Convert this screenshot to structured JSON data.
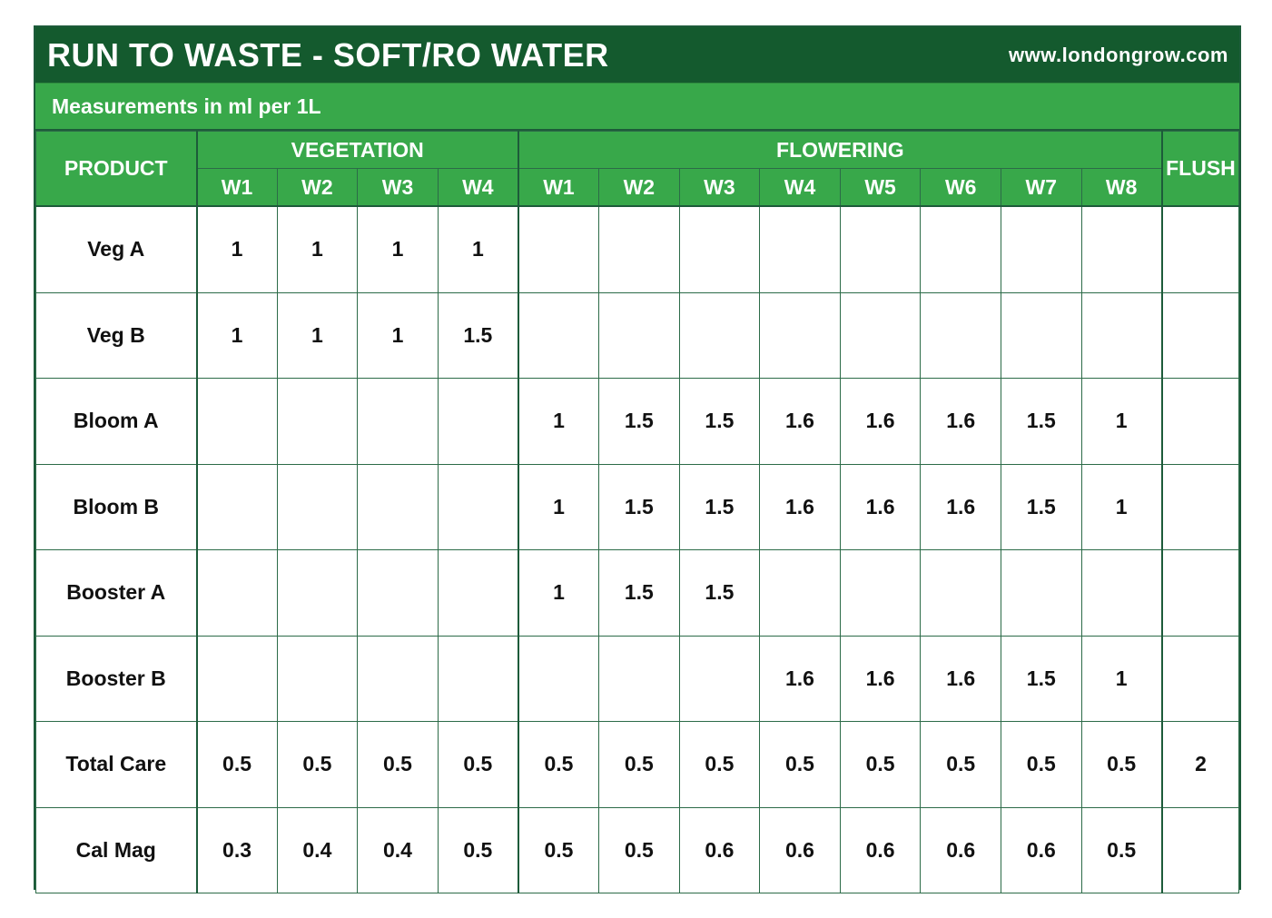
{
  "header": {
    "title": "RUN TO WASTE - SOFT/RO WATER",
    "website": "www.londongrow.com"
  },
  "subtitle": "Measurements in ml per 1L",
  "colors": {
    "title_bar": "#145a2e",
    "header_green": "#38a84a",
    "grid_line": "#1d5b3a"
  },
  "table": {
    "product_header": "PRODUCT",
    "groups": [
      {
        "label": "VEGETATION",
        "weeks": [
          "W1",
          "W2",
          "W3",
          "W4"
        ]
      },
      {
        "label": "FLOWERING",
        "weeks": [
          "W1",
          "W2",
          "W3",
          "W4",
          "W5",
          "W6",
          "W7",
          "W8"
        ]
      }
    ],
    "flush_header": "FLUSH",
    "rows": [
      {
        "product": "Veg A",
        "values": [
          "1",
          "1",
          "1",
          "1",
          "",
          "",
          "",
          "",
          "",
          "",
          "",
          "",
          ""
        ]
      },
      {
        "product": "Veg B",
        "values": [
          "1",
          "1",
          "1",
          "1.5",
          "",
          "",
          "",
          "",
          "",
          "",
          "",
          "",
          ""
        ]
      },
      {
        "product": "Bloom A",
        "values": [
          "",
          "",
          "",
          "",
          "1",
          "1.5",
          "1.5",
          "1.6",
          "1.6",
          "1.6",
          "1.5",
          "1",
          ""
        ]
      },
      {
        "product": "Bloom B",
        "values": [
          "",
          "",
          "",
          "",
          "1",
          "1.5",
          "1.5",
          "1.6",
          "1.6",
          "1.6",
          "1.5",
          "1",
          ""
        ]
      },
      {
        "product": "Booster A",
        "values": [
          "",
          "",
          "",
          "",
          "1",
          "1.5",
          "1.5",
          "",
          "",
          "",
          "",
          "",
          ""
        ]
      },
      {
        "product": "Booster B",
        "values": [
          "",
          "",
          "",
          "",
          "",
          "",
          "",
          "1.6",
          "1.6",
          "1.6",
          "1.5",
          "1",
          ""
        ]
      },
      {
        "product": "Total Care",
        "values": [
          "0.5",
          "0.5",
          "0.5",
          "0.5",
          "0.5",
          "0.5",
          "0.5",
          "0.5",
          "0.5",
          "0.5",
          "0.5",
          "0.5",
          "2"
        ]
      },
      {
        "product": "Cal Mag",
        "values": [
          "0.3",
          "0.4",
          "0.4",
          "0.5",
          "0.5",
          "0.5",
          "0.6",
          "0.6",
          "0.6",
          "0.6",
          "0.6",
          "0.5",
          ""
        ]
      }
    ]
  }
}
